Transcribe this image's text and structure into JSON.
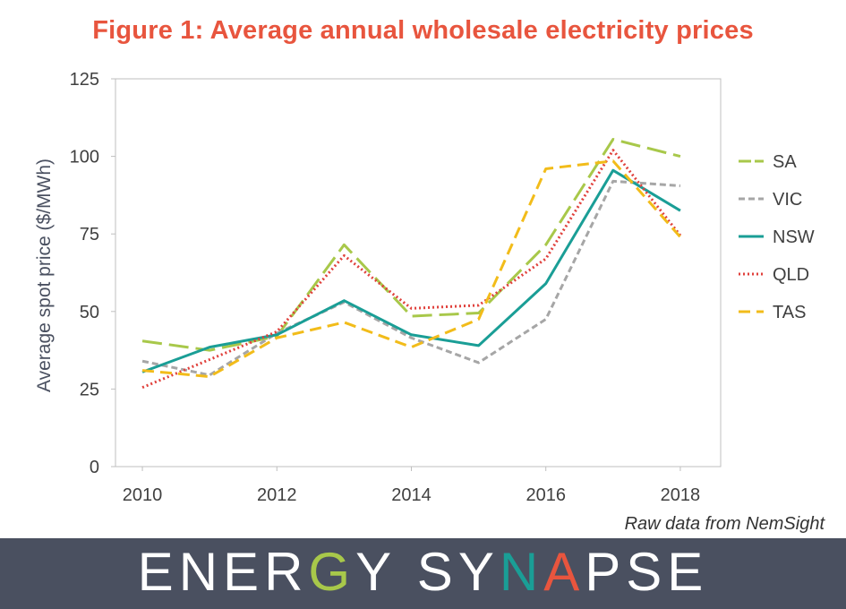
{
  "chart_data": {
    "type": "line",
    "title": "Figure 1: Average annual wholesale electricity prices",
    "xlabel": "",
    "ylabel": "Average spot price ($/MWh)",
    "xlim": [
      2009.6,
      2018.6
    ],
    "ylim": [
      0,
      125
    ],
    "x_ticks": [
      "2010",
      "2012",
      "2014",
      "2016",
      "2018"
    ],
    "y_ticks": [
      "0",
      "25",
      "50",
      "75",
      "100",
      "125"
    ],
    "x": [
      2010,
      2011,
      2012,
      2013,
      2014,
      2015,
      2016,
      2017,
      2018
    ],
    "grid": false,
    "legend_position": "right",
    "series": [
      {
        "name": "SA",
        "color": "#a8c84a",
        "dash": "long-dash",
        "values": [
          40.5,
          37.5,
          42.0,
          71.5,
          48.5,
          49.5,
          71.5,
          105.5,
          100.0
        ]
      },
      {
        "name": "VIC",
        "color": "#a6a6a6",
        "dash": "dash",
        "values": [
          34.0,
          29.5,
          43.0,
          53.0,
          41.5,
          33.5,
          47.5,
          92.0,
          90.5
        ]
      },
      {
        "name": "NSW",
        "color": "#1a9e96",
        "dash": "solid",
        "values": [
          30.5,
          38.5,
          42.5,
          53.5,
          42.5,
          39.0,
          59.0,
          95.5,
          82.5
        ]
      },
      {
        "name": "QLD",
        "color": "#e0413c",
        "dash": "dotted",
        "values": [
          25.5,
          34.5,
          43.5,
          68.0,
          51.0,
          52.0,
          67.0,
          102.0,
          74.5
        ]
      },
      {
        "name": "TAS",
        "color": "#f2bc1a",
        "dash": "medium-dash",
        "values": [
          31.0,
          29.0,
          41.5,
          46.5,
          38.5,
          47.5,
          96.0,
          98.5,
          74.0
        ]
      }
    ]
  },
  "source_note": "Raw data from NemSight",
  "brand": {
    "letters": [
      "E",
      "N",
      "E",
      "R",
      "G",
      "Y",
      " ",
      "S",
      "Y",
      "N",
      "A",
      "P",
      "S",
      "E"
    ],
    "colors": [
      "#ffffff",
      "#ffffff",
      "#ffffff",
      "#ffffff",
      "#a8c84a",
      "#ffffff",
      "#ffffff",
      "#ffffff",
      "#ffffff",
      "#1a9e96",
      "#e8553e",
      "#ffffff",
      "#ffffff",
      "#ffffff"
    ]
  }
}
